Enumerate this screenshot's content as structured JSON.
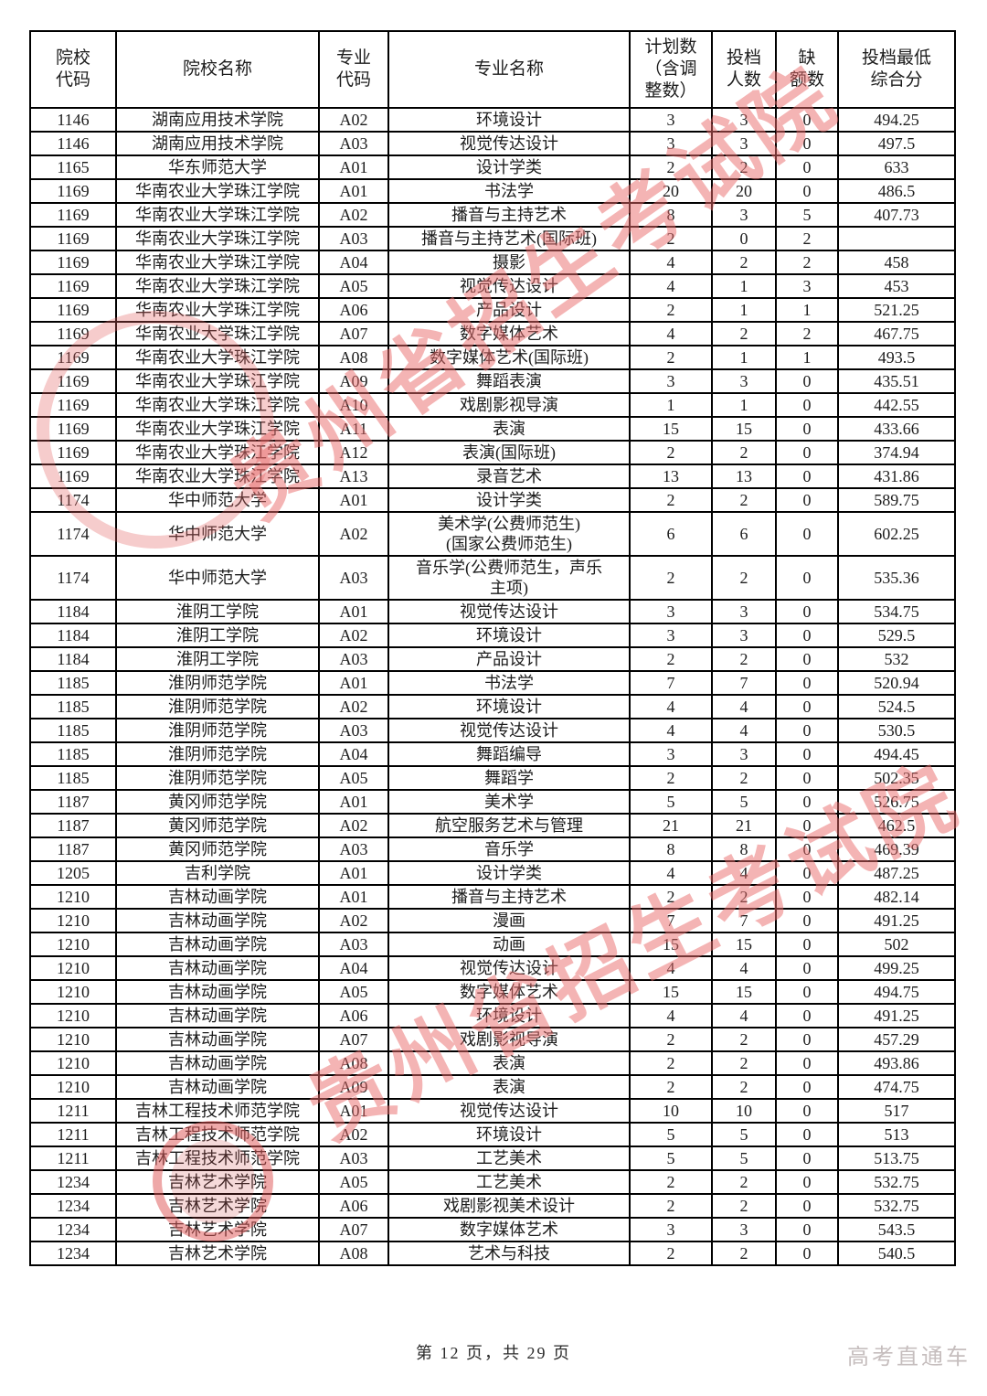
{
  "table": {
    "columns": [
      "院校\n代码",
      "院校名称",
      "专业\n代码",
      "专业名称",
      "计划数\n（含调\n整数）",
      "投档\n人数",
      "缺\n额数",
      "投档最低\n综合分"
    ],
    "rows": [
      [
        "1146",
        "湖南应用技术学院",
        "A02",
        "环境设计",
        "3",
        "3",
        "0",
        "494.25"
      ],
      [
        "1146",
        "湖南应用技术学院",
        "A03",
        "视觉传达设计",
        "3",
        "3",
        "0",
        "497.5"
      ],
      [
        "1165",
        "华东师范大学",
        "A01",
        "设计学类",
        "2",
        "2",
        "0",
        "633"
      ],
      [
        "1169",
        "华南农业大学珠江学院",
        "A01",
        "书法学",
        "20",
        "20",
        "0",
        "486.5"
      ],
      [
        "1169",
        "华南农业大学珠江学院",
        "A02",
        "播音与主持艺术",
        "8",
        "3",
        "5",
        "407.73"
      ],
      [
        "1169",
        "华南农业大学珠江学院",
        "A03",
        "播音与主持艺术(国际班)",
        "2",
        "0",
        "2",
        ""
      ],
      [
        "1169",
        "华南农业大学珠江学院",
        "A04",
        "摄影",
        "4",
        "2",
        "2",
        "458"
      ],
      [
        "1169",
        "华南农业大学珠江学院",
        "A05",
        "视觉传达设计",
        "4",
        "1",
        "3",
        "453"
      ],
      [
        "1169",
        "华南农业大学珠江学院",
        "A06",
        "产品设计",
        "2",
        "1",
        "1",
        "521.25"
      ],
      [
        "1169",
        "华南农业大学珠江学院",
        "A07",
        "数字媒体艺术",
        "4",
        "2",
        "2",
        "467.75"
      ],
      [
        "1169",
        "华南农业大学珠江学院",
        "A08",
        "数字媒体艺术(国际班)",
        "2",
        "1",
        "1",
        "493.5"
      ],
      [
        "1169",
        "华南农业大学珠江学院",
        "A09",
        "舞蹈表演",
        "3",
        "3",
        "0",
        "435.51"
      ],
      [
        "1169",
        "华南农业大学珠江学院",
        "A10",
        "戏剧影视导演",
        "1",
        "1",
        "0",
        "442.55"
      ],
      [
        "1169",
        "华南农业大学珠江学院",
        "A11",
        "表演",
        "15",
        "15",
        "0",
        "433.66"
      ],
      [
        "1169",
        "华南农业大学珠江学院",
        "A12",
        "表演(国际班)",
        "2",
        "2",
        "0",
        "374.94"
      ],
      [
        "1169",
        "华南农业大学珠江学院",
        "A13",
        "录音艺术",
        "13",
        "13",
        "0",
        "431.86"
      ],
      [
        "1174",
        "华中师范大学",
        "A01",
        "设计学类",
        "2",
        "2",
        "0",
        "589.75"
      ],
      [
        "1174",
        "华中师范大学",
        "A02",
        "美术学(公费师范生)\n(国家公费师范生)",
        "6",
        "6",
        "0",
        "602.25"
      ],
      [
        "1174",
        "华中师范大学",
        "A03",
        "音乐学(公费师范生，声乐\n主项)",
        "2",
        "2",
        "0",
        "535.36"
      ],
      [
        "1184",
        "淮阴工学院",
        "A01",
        "视觉传达设计",
        "3",
        "3",
        "0",
        "534.75"
      ],
      [
        "1184",
        "淮阴工学院",
        "A02",
        "环境设计",
        "3",
        "3",
        "0",
        "529.5"
      ],
      [
        "1184",
        "淮阴工学院",
        "A03",
        "产品设计",
        "2",
        "2",
        "0",
        "532"
      ],
      [
        "1185",
        "淮阴师范学院",
        "A01",
        "书法学",
        "7",
        "7",
        "0",
        "520.94"
      ],
      [
        "1185",
        "淮阴师范学院",
        "A02",
        "环境设计",
        "4",
        "4",
        "0",
        "524.5"
      ],
      [
        "1185",
        "淮阴师范学院",
        "A03",
        "视觉传达设计",
        "4",
        "4",
        "0",
        "530.5"
      ],
      [
        "1185",
        "淮阴师范学院",
        "A04",
        "舞蹈编导",
        "3",
        "3",
        "0",
        "494.45"
      ],
      [
        "1185",
        "淮阴师范学院",
        "A05",
        "舞蹈学",
        "2",
        "2",
        "0",
        "502.35"
      ],
      [
        "1187",
        "黄冈师范学院",
        "A01",
        "美术学",
        "5",
        "5",
        "0",
        "526.75"
      ],
      [
        "1187",
        "黄冈师范学院",
        "A02",
        "航空服务艺术与管理",
        "21",
        "21",
        "0",
        "462.5"
      ],
      [
        "1187",
        "黄冈师范学院",
        "A03",
        "音乐学",
        "8",
        "8",
        "0",
        "469.39"
      ],
      [
        "1205",
        "吉利学院",
        "A01",
        "设计学类",
        "4",
        "4",
        "0",
        "487.25"
      ],
      [
        "1210",
        "吉林动画学院",
        "A01",
        "播音与主持艺术",
        "2",
        "2",
        "0",
        "482.14"
      ],
      [
        "1210",
        "吉林动画学院",
        "A02",
        "漫画",
        "7",
        "7",
        "0",
        "491.25"
      ],
      [
        "1210",
        "吉林动画学院",
        "A03",
        "动画",
        "15",
        "15",
        "0",
        "502"
      ],
      [
        "1210",
        "吉林动画学院",
        "A04",
        "视觉传达设计",
        "4",
        "4",
        "0",
        "499.25"
      ],
      [
        "1210",
        "吉林动画学院",
        "A05",
        "数字媒体艺术",
        "15",
        "15",
        "0",
        "494.75"
      ],
      [
        "1210",
        "吉林动画学院",
        "A06",
        "环境设计",
        "4",
        "4",
        "0",
        "491.25"
      ],
      [
        "1210",
        "吉林动画学院",
        "A07",
        "戏剧影视导演",
        "2",
        "2",
        "0",
        "457.29"
      ],
      [
        "1210",
        "吉林动画学院",
        "A08",
        "表演",
        "2",
        "2",
        "0",
        "493.86"
      ],
      [
        "1210",
        "吉林动画学院",
        "A09",
        "表演",
        "2",
        "2",
        "0",
        "474.75"
      ],
      [
        "1211",
        "吉林工程技术师范学院",
        "A01",
        "视觉传达设计",
        "10",
        "10",
        "0",
        "517"
      ],
      [
        "1211",
        "吉林工程技术师范学院",
        "A02",
        "环境设计",
        "5",
        "5",
        "0",
        "513"
      ],
      [
        "1211",
        "吉林工程技术师范学院",
        "A03",
        "工艺美术",
        "5",
        "5",
        "0",
        "513.75"
      ],
      [
        "1234",
        "吉林艺术学院",
        "A05",
        "工艺美术",
        "2",
        "2",
        "0",
        "532.75"
      ],
      [
        "1234",
        "吉林艺术学院",
        "A06",
        "戏剧影视美术设计",
        "2",
        "2",
        "0",
        "532.75"
      ],
      [
        "1234",
        "吉林艺术学院",
        "A07",
        "数字媒体艺术",
        "3",
        "3",
        "0",
        "543.5"
      ],
      [
        "1234",
        "吉林艺术学院",
        "A08",
        "艺术与科技",
        "2",
        "2",
        "0",
        "540.5"
      ]
    ]
  },
  "footer": {
    "page_info": "第 12 页，共 29 页",
    "brand": "高考直通车"
  },
  "watermark": {
    "text": "贵州省招生考试院",
    "color": "#e96a6a"
  }
}
